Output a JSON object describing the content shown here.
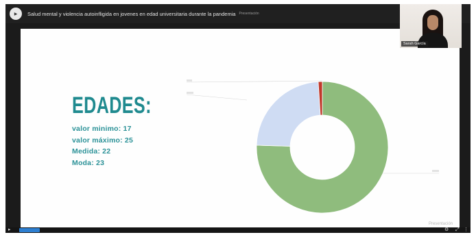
{
  "window": {
    "title": "Salud mental y violencia autoinfligida en jovenes en edad universitaria durante la pandemia",
    "tag": "Presentación"
  },
  "slide": {
    "heading": "EDADES:",
    "stats": [
      "valor minimo: 17",
      "valor máximo: 25",
      "Medida: 22",
      "Moda: 23"
    ],
    "watermark": "Presentación"
  },
  "chart_data": {
    "type": "pie",
    "donut": true,
    "slices": [
      {
        "value": 75.5,
        "color": "#8fbc7d"
      },
      {
        "value": 23.5,
        "color": "#cfdcf3"
      },
      {
        "value": 1.0,
        "color": "#c0392b"
      }
    ]
  },
  "video": {
    "name": "Sarah García"
  },
  "colors": {
    "heading": "#1f8a8f",
    "stats": "#2a9197",
    "progress": "#2d7fd1"
  },
  "icons": {
    "settings": "gear-icon",
    "fullscreen": "fullscreen-icon",
    "play": "play-icon"
  }
}
